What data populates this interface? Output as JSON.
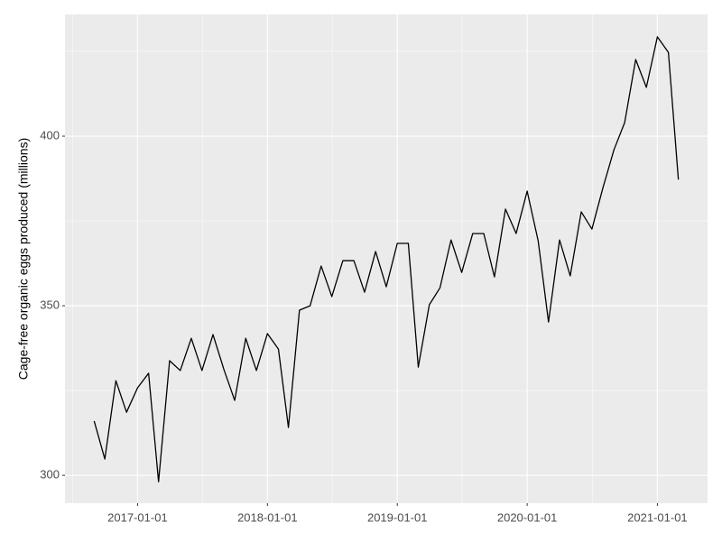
{
  "chart_data": {
    "type": "line",
    "y_label": "Cage-free organic eggs produced (millions)",
    "x": [
      "2016-09-01",
      "2016-10-01",
      "2016-11-01",
      "2016-12-01",
      "2017-01-01",
      "2017-02-01",
      "2017-03-01",
      "2017-04-01",
      "2017-05-01",
      "2017-06-01",
      "2017-07-01",
      "2017-08-01",
      "2017-09-01",
      "2017-10-01",
      "2017-11-01",
      "2017-12-01",
      "2018-01-01",
      "2018-02-01",
      "2018-03-01",
      "2018-04-01",
      "2018-05-01",
      "2018-06-01",
      "2018-07-01",
      "2018-08-01",
      "2018-09-01",
      "2018-10-01",
      "2018-11-01",
      "2018-12-01",
      "2019-01-01",
      "2019-02-01",
      "2019-03-01",
      "2019-04-01",
      "2019-05-01",
      "2019-06-01",
      "2019-07-01",
      "2019-08-01",
      "2019-09-01",
      "2019-10-01",
      "2019-11-01",
      "2019-12-01",
      "2020-01-01",
      "2020-02-01",
      "2020-03-01",
      "2020-04-01",
      "2020-05-01",
      "2020-06-01",
      "2020-07-01",
      "2020-08-01",
      "2020-09-01",
      "2020-10-01",
      "2020-11-01",
      "2020-12-01",
      "2021-01-01",
      "2021-02-01",
      "2021-03-01"
    ],
    "values": [
      316.0,
      304.8,
      327.9,
      318.6,
      325.8,
      330.1,
      298.1,
      333.8,
      330.9,
      340.4,
      330.9,
      341.5,
      331.1,
      322.1,
      340.4,
      330.9,
      341.8,
      337.2,
      314.1,
      348.7,
      350.0,
      361.7,
      352.7,
      363.3,
      363.3,
      354.0,
      366.0,
      355.6,
      368.4,
      368.4,
      331.9,
      350.3,
      355.3,
      369.4,
      359.8,
      371.3,
      371.3,
      358.5,
      378.5,
      371.3,
      383.8,
      369.1,
      345.2,
      369.4,
      358.8,
      377.7,
      372.6,
      384.8,
      396.0,
      404.0,
      422.6,
      414.4,
      429.3,
      424.7,
      387.2
    ],
    "color": "#000000",
    "xlim": [
      "2016-06-11",
      "2021-05-22"
    ],
    "xticks": [
      "2017-01-01",
      "2018-01-01",
      "2019-01-01",
      "2020-01-01",
      "2021-01-01"
    ],
    "x_minor_ticks": [
      "2016-07-02",
      "2017-07-02",
      "2018-07-02",
      "2019-07-02",
      "2020-07-02"
    ],
    "ylim": [
      291.8,
      435.9
    ],
    "yticks": [
      300,
      350,
      400
    ],
    "y_minor_ticks": [
      325,
      375,
      425
    ],
    "grid": true
  }
}
